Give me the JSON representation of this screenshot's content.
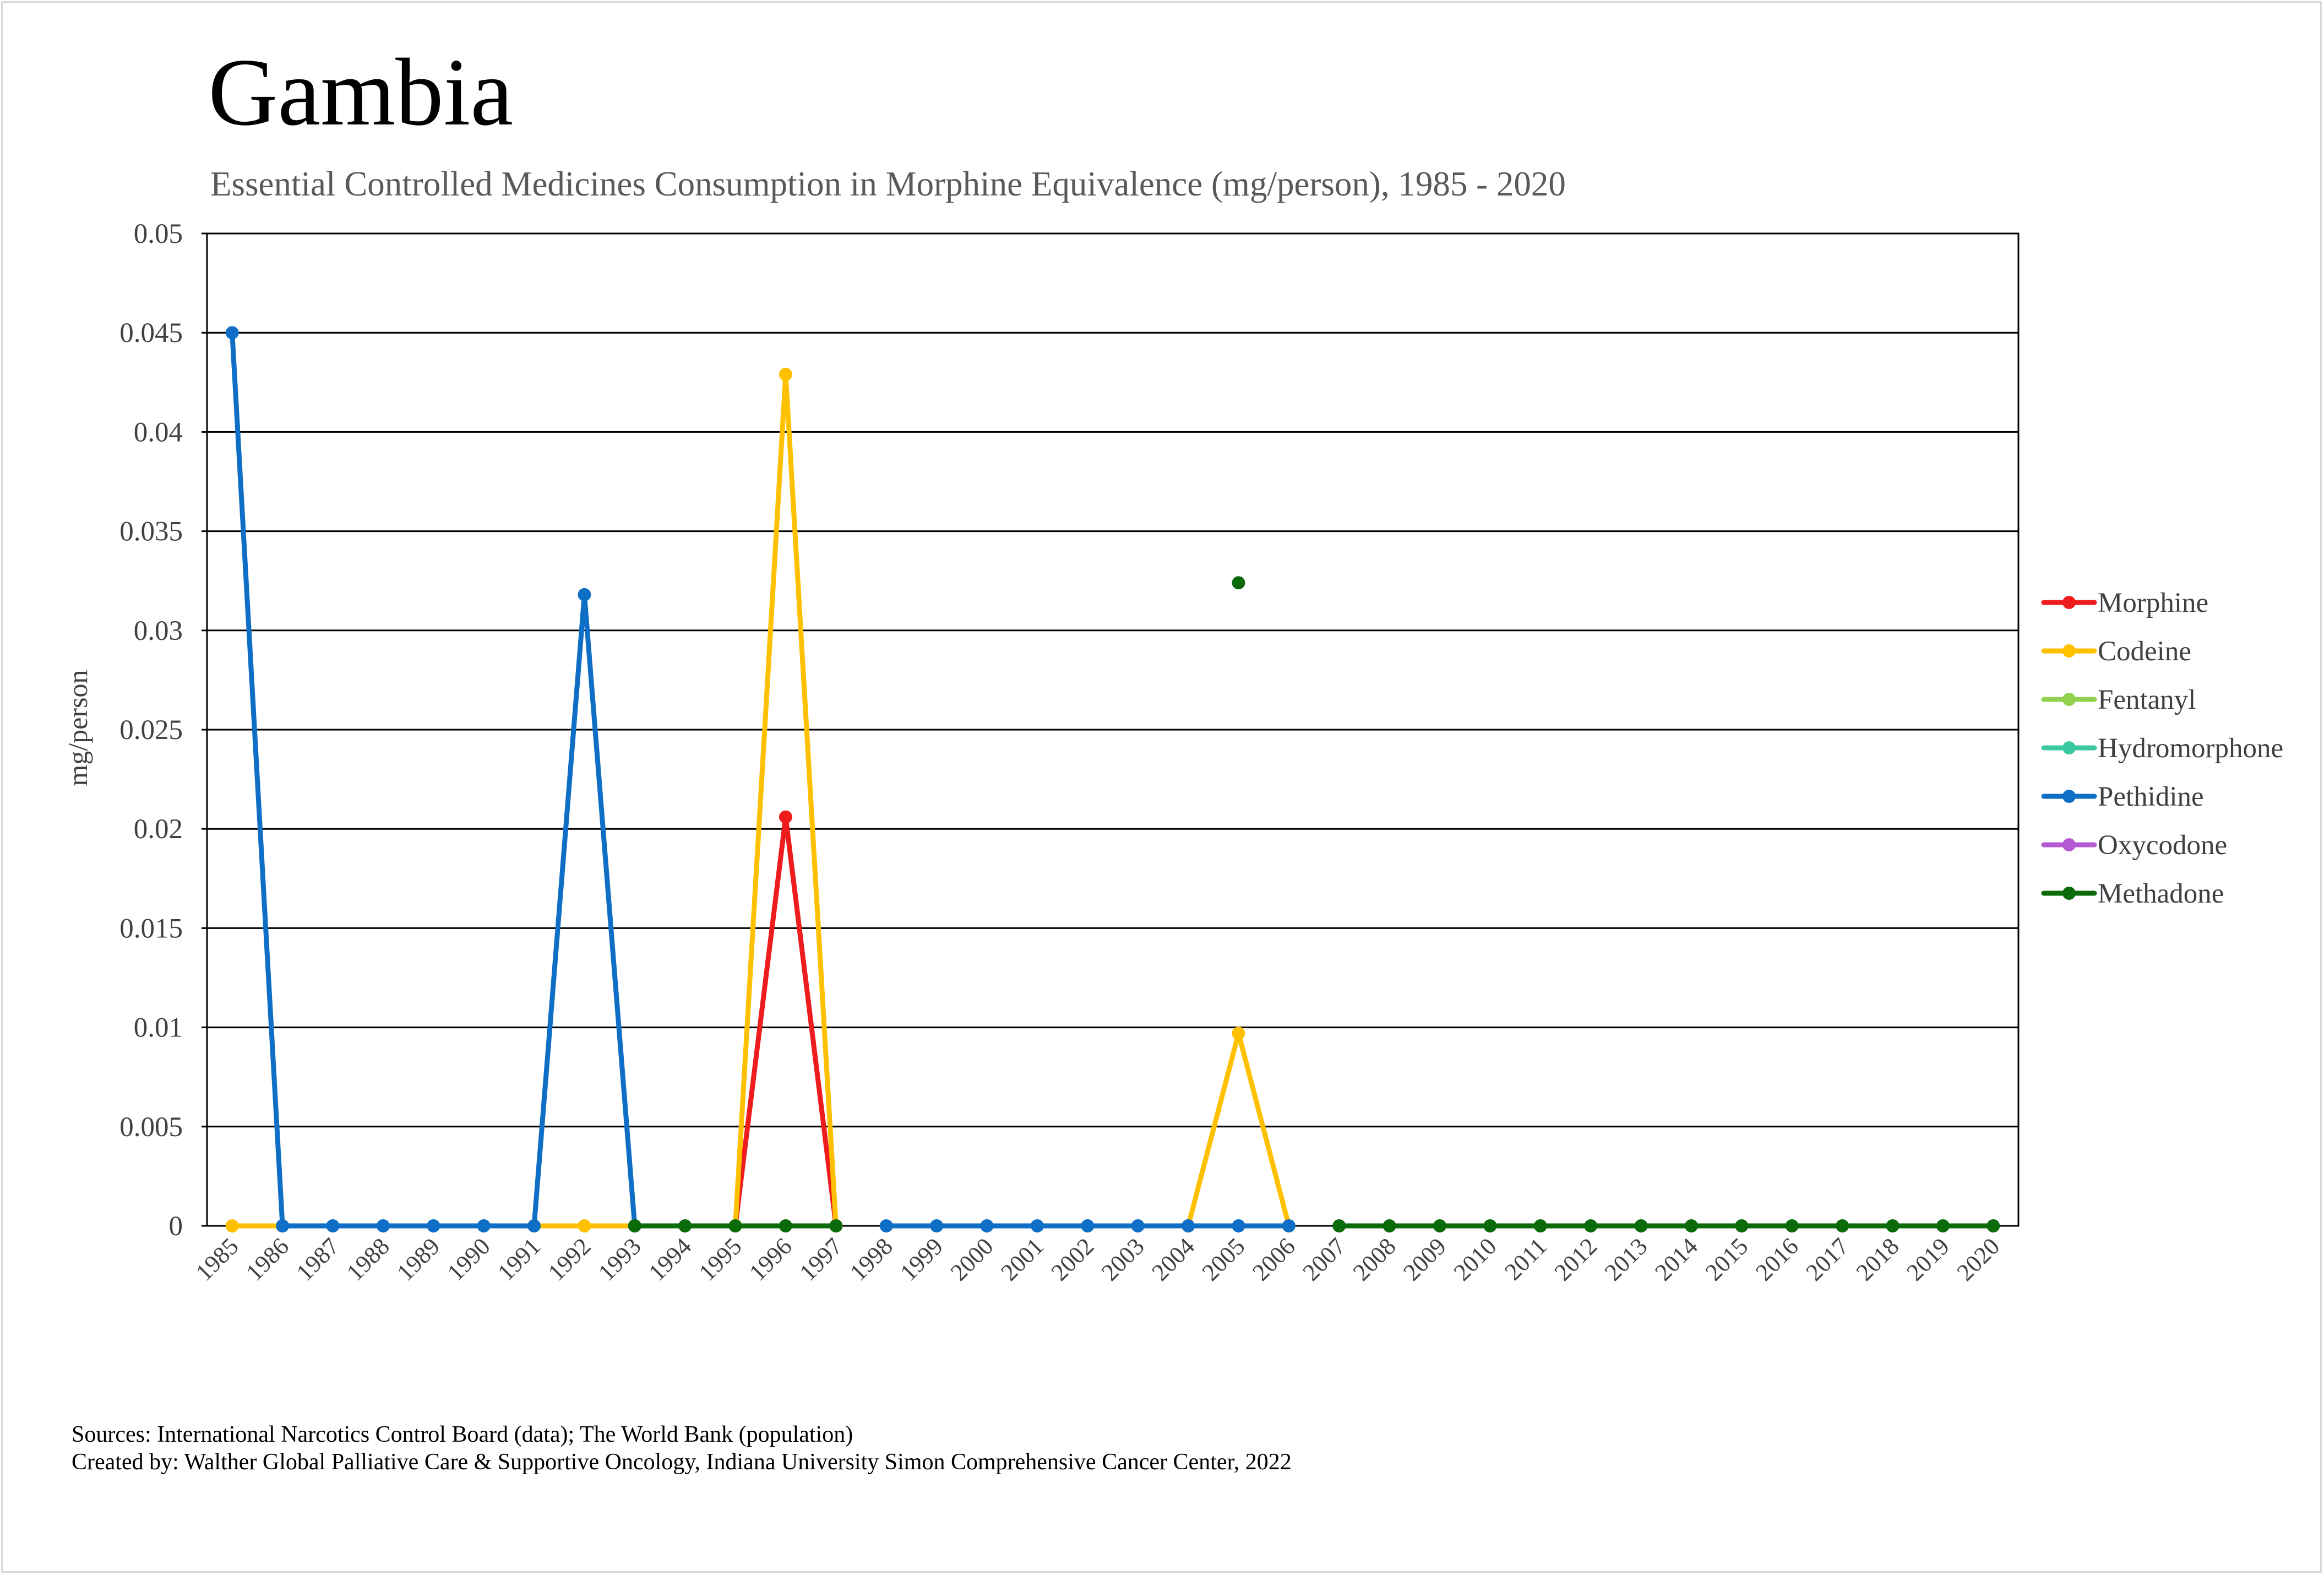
{
  "chart_data": {
    "type": "line",
    "title": "Gambia",
    "subtitle": "Essential Controlled Medicines Consumption in Morphine Equivalence (mg/person), 1985 - 2020",
    "ylabel": "mg/person",
    "xlabel": "",
    "ylim": [
      0,
      0.05
    ],
    "ytick_labels": [
      "0",
      "0.005",
      "0.01",
      "0.015",
      "0.02",
      "0.025",
      "0.03",
      "0.035",
      "0.04",
      "0.045",
      "0.05"
    ],
    "categories": [
      "1985",
      "1986",
      "1987",
      "1988",
      "1989",
      "1990",
      "1991",
      "1992",
      "1993",
      "1994",
      "1995",
      "1996",
      "1997",
      "1998",
      "1999",
      "2000",
      "2001",
      "2002",
      "2003",
      "2004",
      "2005",
      "2006",
      "2007",
      "2008",
      "2009",
      "2010",
      "2011",
      "2012",
      "2013",
      "2014",
      "2015",
      "2016",
      "2017",
      "2018",
      "2019",
      "2020"
    ],
    "grid": true,
    "legend_position": "right",
    "series": [
      {
        "name": "Morphine",
        "color": "#ee1c1c",
        "values": [
          null,
          null,
          null,
          null,
          null,
          null,
          null,
          null,
          null,
          null,
          0,
          0.0206,
          0,
          null,
          null,
          null,
          null,
          null,
          null,
          null,
          null,
          null,
          null,
          null,
          null,
          null,
          null,
          null,
          null,
          null,
          null,
          null,
          null,
          null,
          null,
          null
        ]
      },
      {
        "name": "Codeine",
        "color": "#ffc000",
        "values": [
          0,
          0,
          null,
          null,
          null,
          null,
          0,
          0,
          0,
          null,
          0,
          0.0429,
          0,
          null,
          null,
          null,
          null,
          null,
          null,
          0,
          0.0097,
          0,
          null,
          null,
          null,
          null,
          null,
          null,
          null,
          null,
          null,
          null,
          null,
          null,
          null,
          null
        ]
      },
      {
        "name": "Fentanyl",
        "color": "#92d050",
        "values": [
          null,
          null,
          null,
          null,
          null,
          null,
          null,
          null,
          null,
          null,
          null,
          null,
          null,
          null,
          null,
          null,
          null,
          null,
          null,
          null,
          null,
          null,
          null,
          null,
          null,
          null,
          null,
          null,
          null,
          null,
          null,
          null,
          null,
          null,
          null,
          null
        ]
      },
      {
        "name": "Hydromorphone",
        "color": "#3cc8a0",
        "values": [
          null,
          null,
          null,
          null,
          null,
          null,
          null,
          null,
          null,
          null,
          null,
          null,
          null,
          null,
          null,
          null,
          null,
          null,
          null,
          null,
          null,
          null,
          null,
          null,
          null,
          null,
          null,
          null,
          null,
          null,
          null,
          null,
          null,
          null,
          null,
          null
        ]
      },
      {
        "name": "Pethidine",
        "color": "#0f6fc6",
        "values": [
          0.045,
          0,
          0,
          0,
          0,
          0,
          0,
          0.0318,
          0,
          null,
          null,
          null,
          null,
          0,
          0,
          0,
          0,
          0,
          0,
          0,
          0,
          0,
          null,
          null,
          null,
          null,
          null,
          null,
          null,
          null,
          null,
          null,
          null,
          null,
          null,
          null
        ]
      },
      {
        "name": "Oxycodone",
        "color": "#b45ad2",
        "values": [
          null,
          null,
          null,
          null,
          null,
          null,
          null,
          null,
          null,
          null,
          null,
          null,
          null,
          null,
          null,
          null,
          null,
          null,
          null,
          null,
          null,
          null,
          null,
          null,
          null,
          null,
          null,
          null,
          null,
          null,
          null,
          null,
          null,
          null,
          null,
          null
        ]
      },
      {
        "name": "Methadone",
        "color": "#0b6b0b",
        "values": [
          null,
          null,
          null,
          null,
          null,
          null,
          null,
          null,
          0,
          0,
          0,
          0,
          0,
          null,
          null,
          null,
          null,
          null,
          null,
          null,
          0.0324,
          null,
          0,
          0,
          0,
          0,
          0,
          0,
          0,
          0,
          0,
          0,
          0,
          0,
          0,
          0
        ]
      }
    ]
  },
  "footer": {
    "sources": "Sources: International Narcotics Control Board (data); The World Bank (population)",
    "created_by": "Created by: Walther Global Palliative Care & Supportive Oncology, Indiana University Simon Comprehensive Cancer Center, 2022"
  }
}
